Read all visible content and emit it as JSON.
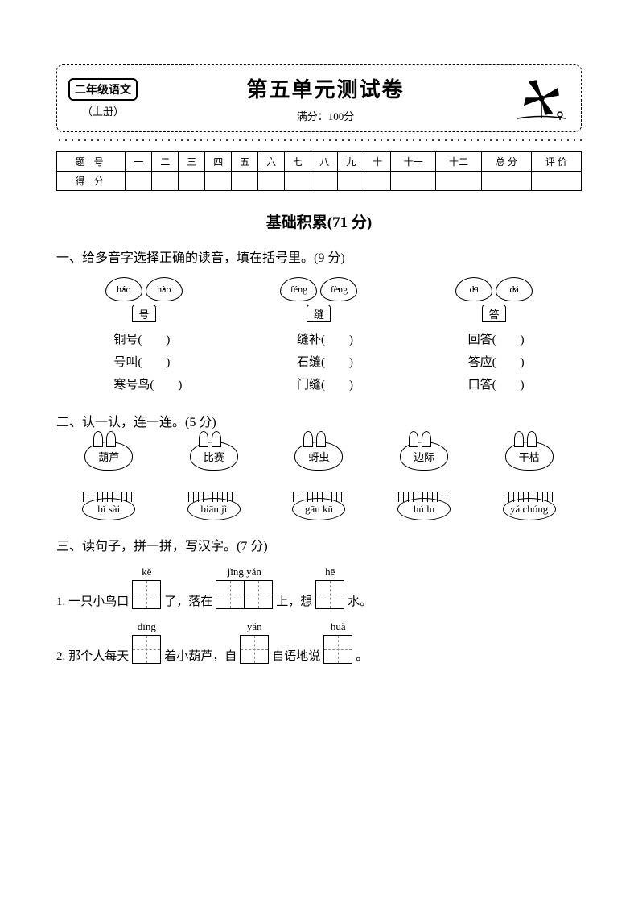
{
  "header": {
    "grade": "二年级语文",
    "volume": "（上册）",
    "title": "第五单元测试卷",
    "full_score": "满分：100分"
  },
  "score_table": {
    "row1_label": "题 号",
    "row2_label": "得 分",
    "cols": [
      "一",
      "二",
      "三",
      "四",
      "五",
      "六",
      "七",
      "八",
      "九",
      "十",
      "十一",
      "十二",
      "总 分",
      "评 价"
    ]
  },
  "section_title": "基础积累(71 分)",
  "q1": {
    "head": "一、给多音字选择正确的读音，填在括号里。(9 分)",
    "groups": [
      {
        "clouds": [
          "háo",
          "hào"
        ],
        "pot": "号",
        "words": [
          "铜号(　　)",
          "号叫(　　)",
          "寒号鸟(　　)"
        ]
      },
      {
        "clouds": [
          "féng",
          "fèng"
        ],
        "pot": "缝",
        "words": [
          "缝补(　　)",
          "石缝(　　)",
          "门缝(　　)"
        ]
      },
      {
        "clouds": [
          "dā",
          "dá"
        ],
        "pot": "答",
        "words": [
          "回答(　　)",
          "答应(　　)",
          "口答(　　)"
        ]
      }
    ]
  },
  "q2": {
    "head": "二、认一认，连一连。(5 分)",
    "rabbits": [
      "葫芦",
      "比赛",
      "蚜虫",
      "边际",
      "干枯"
    ],
    "bees": [
      "bǐ sài",
      "biān jì",
      "gān kū",
      "hú lu",
      "yá chóng"
    ]
  },
  "q3": {
    "head": "三、读句子，拼一拼，写汉字。(7 分)",
    "lines": [
      {
        "num": "1.",
        "parts": [
          {
            "t": "一只小鸟口"
          },
          {
            "p": "kě",
            "n": 1
          },
          {
            "t": "了，落在"
          },
          {
            "p": "jǐng  yán",
            "n": 2
          },
          {
            "t": "上，想"
          },
          {
            "p": "hē",
            "n": 1
          },
          {
            "t": "水。"
          }
        ]
      },
      {
        "num": "2.",
        "parts": [
          {
            "t": "那个人每天"
          },
          {
            "p": "dīng",
            "n": 1
          },
          {
            "t": "着小葫芦，自"
          },
          {
            "p": "yán",
            "n": 1
          },
          {
            "t": "自语地说"
          },
          {
            "p": "huà",
            "n": 1
          },
          {
            "t": "。"
          }
        ]
      }
    ]
  },
  "colors": {
    "text": "#000000",
    "bg": "#ffffff",
    "dash": "#888888"
  }
}
